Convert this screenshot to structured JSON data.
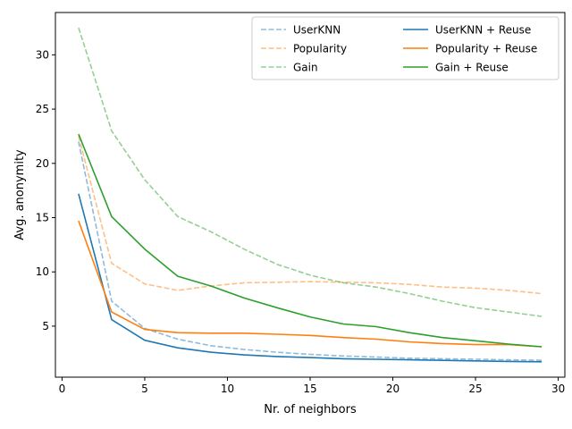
{
  "chart_data": {
    "type": "line",
    "title": "",
    "xlabel": "Nr. of neighbors",
    "ylabel": "Avg. anonymity",
    "xlim": [
      -0.4,
      30.4
    ],
    "ylim": [
      0.3,
      33.9
    ],
    "xticks": [
      0,
      5,
      10,
      15,
      20,
      25,
      30
    ],
    "yticks": [
      5,
      10,
      15,
      20,
      25,
      30
    ],
    "grid": false,
    "legend_position": "top-right",
    "legend_columns": 2,
    "x": [
      1,
      3,
      5,
      7,
      9,
      11,
      13,
      15,
      17,
      19,
      21,
      23,
      25,
      27,
      29
    ],
    "series": [
      {
        "name": "UserKNN",
        "color": "#1f77b4",
        "style": "dashed",
        "alpha": 0.5,
        "values": [
          22.0,
          7.3,
          4.8,
          3.8,
          3.2,
          2.85,
          2.6,
          2.4,
          2.25,
          2.15,
          2.05,
          2.0,
          1.95,
          1.9,
          1.85
        ]
      },
      {
        "name": "Popularity",
        "color": "#ff7f0e",
        "style": "dashed",
        "alpha": 0.5,
        "values": [
          22.5,
          10.8,
          8.9,
          8.3,
          8.7,
          9.0,
          9.05,
          9.1,
          9.05,
          9.0,
          8.85,
          8.6,
          8.5,
          8.3,
          8.0
        ]
      },
      {
        "name": "Gain",
        "color": "#2ca02c",
        "style": "dashed",
        "alpha": 0.5,
        "values": [
          32.5,
          23.0,
          18.5,
          15.1,
          13.7,
          12.1,
          10.7,
          9.7,
          9.0,
          8.6,
          8.0,
          7.3,
          6.7,
          6.3,
          5.9
        ]
      },
      {
        "name": "UserKNN + Reuse",
        "color": "#1f77b4",
        "style": "solid",
        "alpha": 1,
        "values": [
          17.2,
          5.6,
          3.7,
          3.0,
          2.6,
          2.35,
          2.2,
          2.1,
          2.0,
          1.95,
          1.9,
          1.85,
          1.8,
          1.75,
          1.72
        ]
      },
      {
        "name": "Popularity + Reuse",
        "color": "#ff7f0e",
        "style": "solid",
        "alpha": 1,
        "values": [
          14.7,
          6.3,
          4.7,
          4.4,
          4.35,
          4.35,
          4.25,
          4.15,
          3.95,
          3.8,
          3.55,
          3.4,
          3.3,
          3.3,
          3.1
        ]
      },
      {
        "name": "Gain + Reuse",
        "color": "#2ca02c",
        "style": "solid",
        "alpha": 1,
        "values": [
          22.7,
          15.1,
          12.1,
          9.6,
          8.7,
          7.6,
          6.7,
          5.85,
          5.2,
          4.95,
          4.4,
          3.95,
          3.65,
          3.35,
          3.1
        ]
      }
    ]
  }
}
